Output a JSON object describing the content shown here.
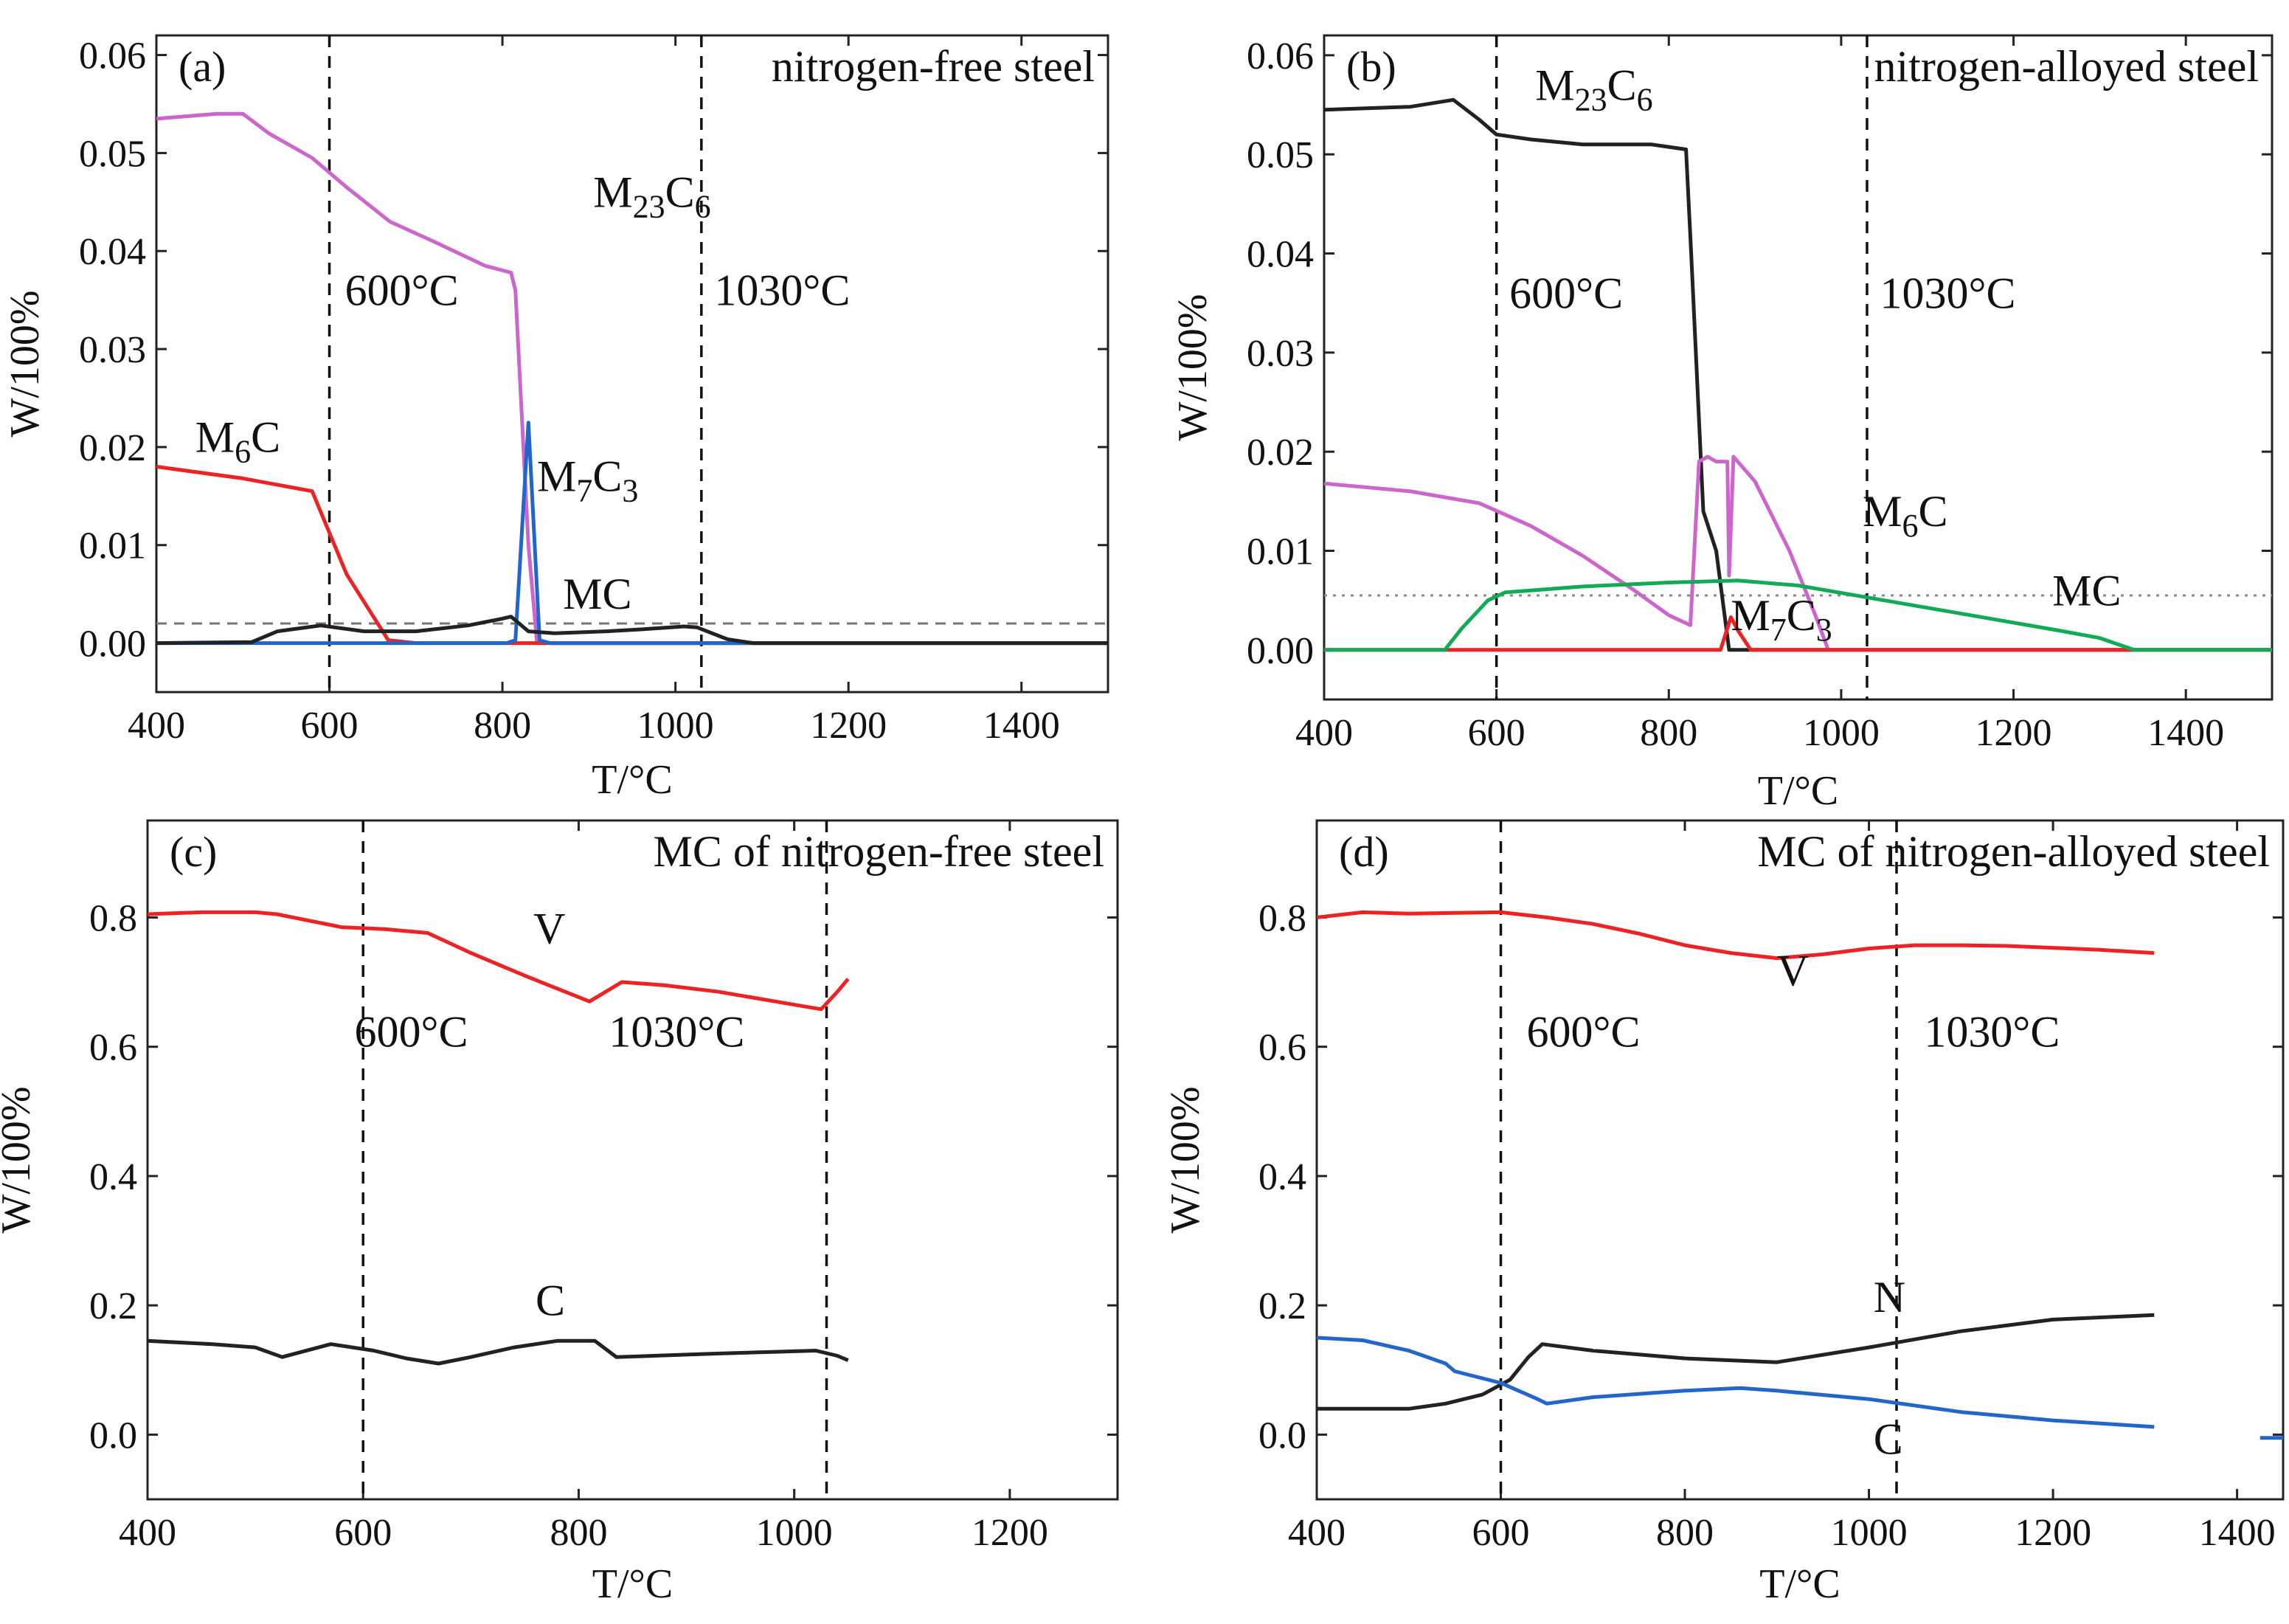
{
  "figure": {
    "panels": [
      {
        "id": "a",
        "chart_data": {
          "type": "line",
          "panel_label": "(a)",
          "title": "nitrogen-free steel",
          "xlabel": "T/°C",
          "ylabel": "W/100%",
          "xlim": [
            400,
            1500
          ],
          "ylim": [
            -0.005,
            0.062
          ],
          "xticks": [
            400,
            600,
            800,
            1000,
            1200,
            1400
          ],
          "xtick_labels": [
            "400",
            "600",
            "800",
            "1000",
            "1200",
            "1400"
          ],
          "yticks": [
            0.0,
            0.01,
            0.02,
            0.03,
            0.04,
            0.05,
            0.06
          ],
          "ytick_labels": [
            "0.00",
            "0.01",
            "0.02",
            "0.03",
            "0.04",
            "0.05",
            "0.06"
          ],
          "vlines": [
            {
              "x": 600,
              "label": "600°C",
              "lx": 618,
              "ly": 0.0345
            },
            {
              "x": 1030,
              "label": "1030°C",
              "lx": 1045,
              "ly": 0.0345
            }
          ],
          "hlines": [
            {
              "y": 0.002,
              "style": "dashed",
              "color": "#777777"
            }
          ],
          "labels": [
            {
              "base": "M",
              "sub": "23",
              "base2": "C",
              "sub2": "6",
              "x": 905,
              "y": 0.0445
            },
            {
              "base": "M",
              "sub": "6",
              "base2": "C",
              "sub2": "",
              "x": 445,
              "y": 0.0195
            },
            {
              "base": "M",
              "sub": "7",
              "base2": "C",
              "sub2": "3",
              "x": 840,
              "y": 0.0155
            },
            {
              "base": "MC",
              "sub": "",
              "base2": "",
              "sub2": "",
              "x": 870,
              "y": 0.0035
            }
          ],
          "series": [
            {
              "name": "M23C6",
              "color": "#cc66cc",
              "x": [
                400,
                470,
                500,
                530,
                580,
                620,
                670,
                720,
                780,
                810,
                815,
                830,
                840,
                850,
                1500
              ],
              "y": [
                0.0535,
                0.054,
                0.054,
                0.052,
                0.0495,
                0.0465,
                0.043,
                0.041,
                0.0385,
                0.0378,
                0.036,
                0.01,
                0.0,
                0.0,
                0.0
              ]
            },
            {
              "name": "M6C",
              "color": "#ee2222",
              "x": [
                400,
                500,
                580,
                620,
                668,
                700,
                1500
              ],
              "y": [
                0.018,
                0.0168,
                0.0155,
                0.007,
                0.0003,
                0.0,
                0.0
              ]
            },
            {
              "name": "M7C3",
              "color": "#2266cc",
              "x": [
                400,
                805,
                815,
                830,
                843,
                855,
                870,
                1500
              ],
              "y": [
                0.0,
                0.0,
                0.0003,
                0.0225,
                0.0003,
                0.0,
                0.0,
                0.0
              ]
            },
            {
              "name": "MC",
              "color": "#222222",
              "x": [
                400,
                510,
                540,
                590,
                640,
                700,
                760,
                800,
                810,
                830,
                860,
                920,
                960,
                1010,
                1025,
                1060,
                1090,
                1500
              ],
              "y": [
                0.0,
                0.0001,
                0.0012,
                0.0018,
                0.0012,
                0.0012,
                0.0018,
                0.0025,
                0.0027,
                0.0012,
                0.001,
                0.0012,
                0.0014,
                0.0017,
                0.0016,
                0.0004,
                0.0,
                0.0
              ]
            }
          ]
        }
      },
      {
        "id": "b",
        "chart_data": {
          "type": "line",
          "panel_label": "(b)",
          "title": "nitrogen-alloyed steel",
          "xlabel": "T/°C",
          "ylabel": "W/100%",
          "xlim": [
            400,
            1500
          ],
          "ylim": [
            -0.005,
            0.062
          ],
          "xticks": [
            400,
            600,
            800,
            1000,
            1200,
            1400
          ],
          "xtick_labels": [
            "400",
            "600",
            "800",
            "1000",
            "1200",
            "1400"
          ],
          "yticks": [
            0.0,
            0.01,
            0.02,
            0.03,
            0.04,
            0.05,
            0.06
          ],
          "ytick_labels": [
            "0.00",
            "0.01",
            "0.02",
            "0.03",
            "0.04",
            "0.05",
            "0.06"
          ],
          "vlines": [
            {
              "x": 600,
              "label": "600°C",
              "lx": 615,
              "ly": 0.0345
            },
            {
              "x": 1030,
              "label": "1030°C",
              "lx": 1045,
              "ly": 0.0345
            }
          ],
          "hlines": [
            {
              "y": 0.0055,
              "style": "dotted",
              "color": "#888888"
            }
          ],
          "labels": [
            {
              "base": "M",
              "sub": "23",
              "base2": "C",
              "sub2": "6",
              "x": 645,
              "y": 0.0555
            },
            {
              "base": "M",
              "sub": "6",
              "base2": "C",
              "sub2": "",
              "x": 1025,
              "y": 0.0125
            },
            {
              "base": "M",
              "sub": "7",
              "base2": "C",
              "sub2": "3",
              "x": 872,
              "y": 0.002
            },
            {
              "base": "MC",
              "sub": "",
              "base2": "",
              "sub2": "",
              "x": 1245,
              "y": 0.0045
            }
          ],
          "series": [
            {
              "name": "M23C6",
              "color": "#222222",
              "x": [
                400,
                500,
                550,
                580,
                600,
                640,
                700,
                780,
                820,
                826,
                840,
                855,
                870,
                1500
              ],
              "y": [
                0.0545,
                0.0548,
                0.0555,
                0.0535,
                0.052,
                0.0515,
                0.051,
                0.051,
                0.0505,
                0.04,
                0.014,
                0.01,
                0.0,
                0.0
              ]
            },
            {
              "name": "M6C",
              "color": "#cc66cc",
              "x": [
                400,
                500,
                580,
                640,
                700,
                760,
                800,
                825,
                835,
                845,
                855,
                868,
                870,
                875,
                900,
                940,
                970,
                985,
                1500
              ],
              "y": [
                0.0168,
                0.016,
                0.0148,
                0.0125,
                0.0095,
                0.006,
                0.0035,
                0.0025,
                0.019,
                0.0195,
                0.019,
                0.019,
                0.0075,
                0.0195,
                0.017,
                0.01,
                0.0035,
                0.0,
                0.0
              ]
            },
            {
              "name": "M7C3",
              "color": "#ee2222",
              "x": [
                400,
                860,
                872,
                880,
                895,
                1500
              ],
              "y": [
                0.0,
                0.0,
                0.0033,
                0.002,
                0.0,
                0.0
              ]
            },
            {
              "name": "MC",
              "color": "#11aa55",
              "x": [
                400,
                540,
                560,
                590,
                610,
                700,
                800,
                880,
                950,
                1050,
                1150,
                1250,
                1300,
                1330,
                1340,
                1500
              ],
              "y": [
                0.0,
                0.0,
                0.0022,
                0.005,
                0.0058,
                0.0064,
                0.0068,
                0.007,
                0.0065,
                0.005,
                0.0035,
                0.002,
                0.0012,
                0.0003,
                0.0,
                0.0
              ]
            }
          ]
        }
      },
      {
        "id": "c",
        "chart_data": {
          "type": "line",
          "panel_label": "(c)",
          "title": "MC of nitrogen-free steel",
          "xlabel": "T/°C",
          "ylabel": "W/100%",
          "xlim": [
            400,
            1300
          ],
          "ylim": [
            -0.1,
            0.95
          ],
          "xticks": [
            400,
            600,
            800,
            1000,
            1200
          ],
          "xtick_labels": [
            "400",
            "600",
            "800",
            "1000",
            "1200"
          ],
          "yticks": [
            0.0,
            0.2,
            0.4,
            0.6,
            0.8
          ],
          "ytick_labels": [
            "0.0",
            "0.2",
            "0.4",
            "0.6",
            "0.8"
          ],
          "vlines": [
            {
              "x": 600,
              "label": "600°C",
              "lx": 592,
              "ly": 0.6
            },
            {
              "x": 1030,
              "label": "1030°C",
              "lx": 828,
              "ly": 0.6
            }
          ],
          "hlines": [],
          "labels": [
            {
              "base": "V",
              "sub": "",
              "base2": "",
              "sub2": "",
              "x": 758,
              "y": 0.76
            },
            {
              "base": "C",
              "sub": "",
              "base2": "",
              "sub2": "",
              "x": 760,
              "y": 0.185
            }
          ],
          "series": [
            {
              "name": "V",
              "color": "#ee2222",
              "x": [
                400,
                450,
                500,
                520,
                580,
                620,
                660,
                700,
                750,
                810,
                840,
                880,
                930,
                1000,
                1025,
                1040,
                1050
              ],
              "y": [
                0.805,
                0.808,
                0.808,
                0.805,
                0.785,
                0.782,
                0.776,
                0.745,
                0.71,
                0.67,
                0.7,
                0.695,
                0.685,
                0.665,
                0.658,
                0.685,
                0.705
              ]
            },
            {
              "name": "C",
              "color": "#222222",
              "x": [
                400,
                460,
                500,
                525,
                570,
                610,
                640,
                670,
                700,
                740,
                780,
                815,
                835,
                870,
                920,
                980,
                1020,
                1040,
                1050
              ],
              "y": [
                0.145,
                0.14,
                0.135,
                0.12,
                0.14,
                0.13,
                0.118,
                0.11,
                0.12,
                0.135,
                0.145,
                0.145,
                0.12,
                0.122,
                0.125,
                0.128,
                0.13,
                0.122,
                0.115
              ]
            }
          ]
        }
      },
      {
        "id": "d",
        "chart_data": {
          "type": "line",
          "panel_label": "(d)",
          "title": "MC of nitrogen-alloyed steel",
          "xlabel": "T/°C",
          "ylabel": "W/100%",
          "xlim": [
            400,
            1450
          ],
          "ylim": [
            -0.1,
            0.95
          ],
          "xticks": [
            400,
            600,
            800,
            1000,
            1200,
            1400
          ],
          "xtick_labels": [
            "400",
            "600",
            "800",
            "1000",
            "1200",
            "1400"
          ],
          "yticks": [
            0.0,
            0.2,
            0.4,
            0.6,
            0.8
          ],
          "ytick_labels": [
            "0.0",
            "0.2",
            "0.4",
            "0.6",
            "0.8"
          ],
          "vlines": [
            {
              "x": 600,
              "label": "600°C",
              "lx": 628,
              "ly": 0.6
            },
            {
              "x": 1030,
              "label": "1030°C",
              "lx": 1060,
              "ly": 0.6
            }
          ],
          "hlines": [],
          "labels": [
            {
              "base": "V",
              "sub": "",
              "base2": "",
              "sub2": "",
              "x": 900,
              "y": 0.695
            },
            {
              "base": "N",
              "sub": "",
              "base2": "",
              "sub2": "",
              "x": 1005,
              "y": 0.19
            },
            {
              "base": "C",
              "sub": "",
              "base2": "",
              "sub2": "",
              "x": 1005,
              "y": -0.03
            }
          ],
          "series": [
            {
              "name": "V",
              "color": "#ee2222",
              "x": [
                400,
                450,
                500,
                550,
                600,
                650,
                700,
                750,
                800,
                850,
                900,
                950,
                1000,
                1050,
                1100,
                1150,
                1200,
                1250,
                1310
              ],
              "y": [
                0.8,
                0.808,
                0.806,
                0.807,
                0.808,
                0.8,
                0.79,
                0.775,
                0.757,
                0.745,
                0.737,
                0.743,
                0.752,
                0.757,
                0.757,
                0.756,
                0.753,
                0.75,
                0.745
              ]
            },
            {
              "name": "N",
              "color": "#222222",
              "x": [
                400,
                500,
                540,
                580,
                610,
                630,
                645,
                700,
                800,
                900,
                1000,
                1100,
                1200,
                1310
              ],
              "y": [
                0.04,
                0.04,
                0.048,
                0.062,
                0.085,
                0.12,
                0.14,
                0.13,
                0.118,
                0.112,
                0.135,
                0.16,
                0.178,
                0.185
              ]
            },
            {
              "name": "C",
              "color": "#2266cc",
              "x": [
                400,
                450,
                500,
                540,
                550,
                600,
                640,
                650,
                700,
                800,
                860,
                900,
                1000,
                1100,
                1200,
                1310
              ],
              "y": [
                0.15,
                0.146,
                0.13,
                0.11,
                0.098,
                0.08,
                0.055,
                0.048,
                0.058,
                0.068,
                0.072,
                0.068,
                0.055,
                0.035,
                0.022,
                0.012
              ]
            },
            {
              "name": "C-fragment",
              "color": "#2266cc",
              "x": [
                1425,
                1450
              ],
              "y": [
                -0.005,
                -0.005
              ]
            }
          ]
        }
      }
    ]
  }
}
